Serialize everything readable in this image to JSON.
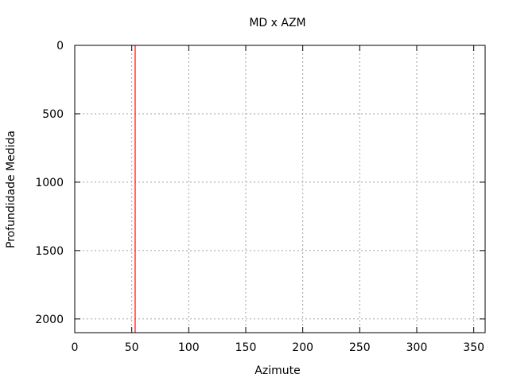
{
  "chart_data": {
    "type": "line",
    "title": "MD x AZM",
    "xlabel": "Azimute",
    "ylabel": "Profundidade Medida",
    "xlim": [
      0,
      360
    ],
    "ylim": [
      2100,
      0
    ],
    "y_inverted": true,
    "grid": true,
    "x_ticks": [
      0,
      50,
      100,
      150,
      200,
      250,
      300,
      350
    ],
    "y_ticks": [
      0,
      500,
      1000,
      1500,
      2000
    ],
    "series": [
      {
        "color": "#ff0000",
        "x": [
          53,
          53
        ],
        "y": [
          0,
          2100
        ]
      }
    ]
  }
}
